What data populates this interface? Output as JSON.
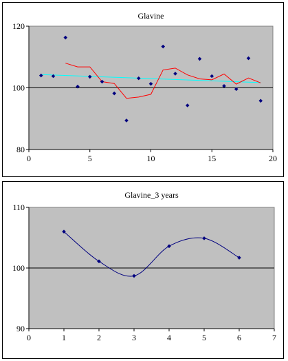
{
  "chart_data": [
    {
      "type": "scatter",
      "title": "Glavine",
      "xlim": [
        0,
        20
      ],
      "ylim": [
        80,
        120
      ],
      "x_ticks": [
        "0",
        "5",
        "10",
        "15",
        "20"
      ],
      "y_ticks": [
        "80",
        "100",
        "120"
      ],
      "reference_line": 100,
      "plot_background": "#c0c0c0",
      "points": {
        "color": "#00007f",
        "x": [
          1,
          2,
          3,
          4,
          5,
          6,
          7,
          8,
          9,
          10,
          11,
          12,
          13,
          14,
          15,
          16,
          17,
          18,
          19
        ],
        "y": [
          104,
          103.8,
          116.3,
          100.4,
          103.6,
          102,
          98.2,
          89.4,
          103.1,
          101.3,
          113.4,
          104.6,
          94.3,
          109.4,
          103.8,
          100.6,
          99.6,
          109.6,
          95.8
        ]
      },
      "moving_average": {
        "color": "#ff0000",
        "x": [
          3,
          4,
          5,
          6,
          7,
          8,
          9,
          10,
          11,
          12,
          13,
          14,
          15,
          16,
          17,
          18,
          19
        ],
        "y": [
          108,
          106.8,
          106.8,
          102,
          101.4,
          96.6,
          97,
          97.9,
          105.8,
          106.4,
          104.2,
          102.9,
          102.6,
          104.5,
          101.2,
          103.2,
          101.6
        ]
      },
      "trend_line": {
        "color": "#00ffff",
        "x": [
          1,
          19
        ],
        "y": [
          104.3,
          101.7
        ]
      }
    },
    {
      "type": "line",
      "title": "Glavine_3 years",
      "xlim": [
        0,
        7
      ],
      "ylim": [
        90,
        110
      ],
      "x_ticks": [
        "0",
        "1",
        "2",
        "3",
        "4",
        "5",
        "6",
        "7"
      ],
      "y_ticks": [
        "90",
        "100",
        "110"
      ],
      "reference_line": 100,
      "plot_background": "#c0c0c0",
      "series": [
        {
          "color": "#00007f",
          "x": [
            1,
            2,
            3,
            4,
            5,
            6
          ],
          "y": [
            106,
            101.1,
            98.7,
            103.6,
            104.9,
            101.7
          ]
        }
      ]
    }
  ]
}
